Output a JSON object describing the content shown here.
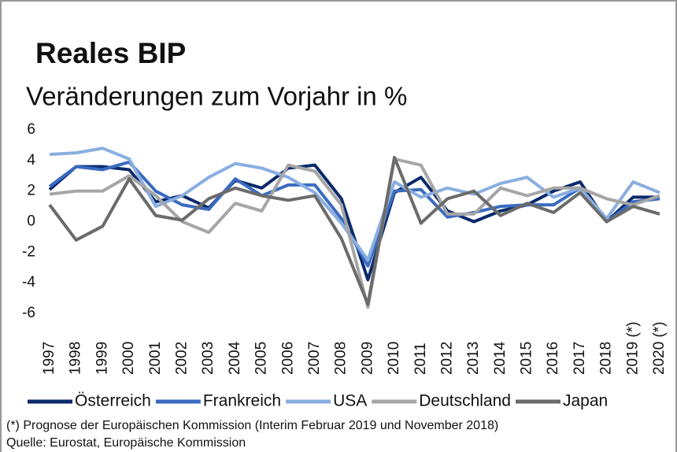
{
  "chart_data": {
    "type": "line",
    "title": "Reales BIP",
    "subtitle": "Veränderungen zum Vorjahr in %",
    "categories": [
      "1997",
      "1998",
      "1999",
      "2000",
      "2001",
      "2002",
      "2003",
      "2004",
      "2005",
      "2006",
      "2007",
      "2008",
      "2009",
      "2010",
      "2011",
      "2012",
      "2013",
      "2014",
      "2015",
      "2016",
      "2017",
      "2018",
      "2019 (*)",
      "2020 (*)"
    ],
    "series": [
      {
        "name": "Österreich",
        "color": "#0b2a6b",
        "values": [
          2.1,
          3.6,
          3.6,
          3.4,
          1.3,
          1.7,
          0.9,
          2.7,
          2.2,
          3.5,
          3.7,
          1.5,
          -3.8,
          1.9,
          2.9,
          0.7,
          0.0,
          0.7,
          1.1,
          2.0,
          2.6,
          0.0,
          1.6,
          1.6
        ]
      },
      {
        "name": "Frankreich",
        "color": "#3a6bc0",
        "values": [
          2.3,
          3.6,
          3.4,
          3.9,
          2.0,
          1.1,
          0.8,
          2.8,
          1.7,
          2.4,
          2.4,
          0.2,
          -2.9,
          2.0,
          2.1,
          0.3,
          0.6,
          1.0,
          1.1,
          1.1,
          2.2,
          0.0,
          1.3,
          1.5
        ]
      },
      {
        "name": "USA",
        "color": "#8aaee0",
        "values": [
          4.4,
          4.5,
          4.8,
          4.1,
          1.0,
          1.7,
          2.9,
          3.8,
          3.5,
          2.9,
          1.9,
          -0.1,
          -2.5,
          2.6,
          1.6,
          2.2,
          1.8,
          2.5,
          2.9,
          1.6,
          2.2,
          0.2,
          2.6,
          1.9
        ]
      },
      {
        "name": "Deutschland",
        "color": "#a6a6a6",
        "values": [
          1.8,
          2.0,
          2.0,
          3.0,
          1.7,
          0.0,
          -0.7,
          1.2,
          0.7,
          3.7,
          3.3,
          1.1,
          -5.6,
          4.1,
          3.7,
          0.5,
          0.5,
          2.2,
          1.7,
          2.2,
          2.2,
          1.5,
          1.1,
          1.7
        ]
      },
      {
        "name": "Japan",
        "color": "#6b6b6b",
        "values": [
          1.1,
          -1.2,
          -0.3,
          2.8,
          0.4,
          0.1,
          1.5,
          2.2,
          1.7,
          1.4,
          1.7,
          -1.1,
          -5.4,
          4.2,
          -0.1,
          1.5,
          2.0,
          0.4,
          1.2,
          0.6,
          1.9,
          0.0,
          1.0,
          0.5
        ]
      }
    ],
    "ylim": [
      -6,
      6
    ],
    "yticks": [
      -6,
      -4,
      -2,
      0,
      2,
      4,
      6
    ],
    "notes": [
      "(*) Prognose der Europäischen Kommission (Interim Februar 2019 und November 2018)",
      "Quelle: Eurostat, Europäische Kommission"
    ]
  }
}
